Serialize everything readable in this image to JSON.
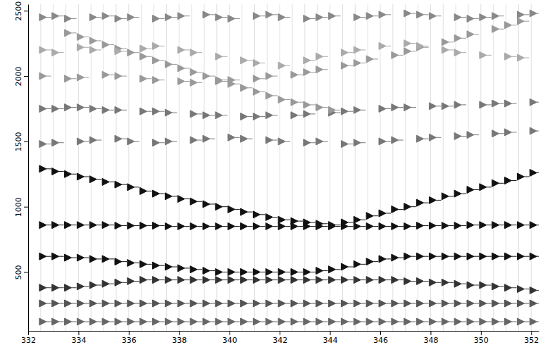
{
  "chart_data": {
    "type": "scatter",
    "marker": "flag",
    "grid": false,
    "xlim": [
      332,
      352.3
    ],
    "xticks": [
      332,
      334,
      336,
      338,
      340,
      342,
      344,
      346,
      348,
      350,
      352
    ],
    "ylim": [
      50,
      2550
    ],
    "yticks": [
      500,
      1000,
      1500,
      2000,
      2500
    ],
    "x": [
      332.5,
      333.0,
      333.5,
      334.0,
      334.5,
      335.0,
      335.5,
      336.0,
      336.5,
      337.0,
      337.5,
      338.0,
      338.5,
      339.0,
      339.5,
      340.0,
      340.5,
      341.0,
      341.5,
      342.0,
      342.5,
      343.0,
      343.5,
      344.0,
      344.5,
      345.0,
      345.5,
      346.0,
      346.5,
      347.0,
      347.5,
      348.0,
      348.5,
      349.0,
      349.5,
      350.0,
      350.5,
      351.0,
      351.5,
      352.0
    ],
    "series": [
      {
        "color": "#111111",
        "values": [
          1290,
          1270,
          1250,
          1230,
          1210,
          1190,
          1170,
          1150,
          1120,
          1100,
          1080,
          1060,
          1040,
          1020,
          1000,
          980,
          960,
          940,
          920,
          900,
          890,
          880,
          870,
          860,
          880,
          900,
          930,
          950,
          980,
          1000,
          1030,
          1050,
          1080,
          1100,
          1130,
          1150,
          1180,
          1200,
          1230,
          1260
        ]
      },
      {
        "color": "#111111",
        "values": [
          860,
          860,
          860,
          860,
          860,
          860,
          855,
          855,
          855,
          855,
          850,
          850,
          850,
          850,
          850,
          850,
          850,
          850,
          850,
          850,
          850,
          850,
          850,
          850,
          850,
          850,
          850,
          850,
          850,
          850,
          855,
          855,
          855,
          855,
          860,
          860,
          860,
          860,
          860,
          860
        ]
      },
      {
        "color": "#111111",
        "values": [
          620,
          620,
          610,
          610,
          600,
          600,
          580,
          570,
          560,
          550,
          540,
          530,
          520,
          510,
          500,
          500,
          500,
          500,
          500,
          500,
          500,
          500,
          510,
          520,
          540,
          560,
          580,
          600,
          610,
          620,
          620,
          620,
          620,
          620,
          620,
          620,
          620,
          620,
          620,
          620
        ]
      },
      {
        "color": "#333333",
        "values": [
          380,
          380,
          380,
          390,
          400,
          410,
          420,
          430,
          440,
          440,
          440,
          440,
          440,
          440,
          440,
          440,
          440,
          440,
          440,
          440,
          440,
          440,
          440,
          440,
          440,
          440,
          440,
          440,
          440,
          430,
          430,
          420,
          420,
          410,
          400,
          400,
          390,
          380,
          370,
          360
        ]
      },
      {
        "color": "#555555",
        "values": [
          260,
          260,
          260,
          260,
          260,
          260,
          260,
          260,
          260,
          260,
          260,
          260,
          260,
          260,
          260,
          260,
          260,
          260,
          260,
          260,
          260,
          260,
          260,
          260,
          260,
          260,
          260,
          260,
          260,
          260,
          260,
          260,
          260,
          260,
          260,
          260,
          260,
          260,
          260,
          260
        ]
      },
      {
        "color": "#666666",
        "values": [
          120,
          120,
          120,
          120,
          120,
          120,
          120,
          120,
          120,
          120,
          120,
          120,
          120,
          120,
          120,
          120,
          120,
          120,
          120,
          120,
          120,
          120,
          120,
          120,
          120,
          120,
          120,
          120,
          120,
          120,
          120,
          120,
          120,
          120,
          120,
          120,
          120,
          120,
          120,
          120
        ]
      },
      {
        "color": "#777777",
        "values": [
          1480,
          1490,
          null,
          1500,
          1510,
          null,
          1520,
          1500,
          null,
          1490,
          1500,
          null,
          1510,
          1520,
          null,
          1530,
          1520,
          null,
          1510,
          1500,
          null,
          1490,
          1500,
          null,
          1480,
          1490,
          null,
          1500,
          1510,
          null,
          1520,
          1530,
          null,
          1540,
          1550,
          null,
          1560,
          1570,
          null,
          1580
        ]
      },
      {
        "color": "#777777",
        "values": [
          1750,
          1750,
          1760,
          1760,
          1750,
          1740,
          1740,
          null,
          1730,
          1730,
          1720,
          null,
          1710,
          1700,
          1700,
          null,
          1690,
          1690,
          1700,
          null,
          1700,
          1710,
          null,
          1720,
          1730,
          1740,
          null,
          1750,
          1760,
          1760,
          null,
          1770,
          1770,
          1780,
          null,
          1780,
          1790,
          1790,
          null,
          1800
        ]
      },
      {
        "color": "#999999",
        "values": [
          null,
          null,
          2330,
          2300,
          2270,
          2240,
          2210,
          2180,
          2150,
          2120,
          2090,
          2060,
          2030,
          2000,
          1970,
          1940,
          1910,
          1880,
          1850,
          1820,
          1800,
          1780,
          1760,
          1740,
          null,
          null,
          null,
          null,
          null,
          null,
          null,
          null,
          null,
          null,
          null,
          null,
          null,
          null,
          null,
          null
        ]
      },
      {
        "color": "#999999",
        "values": [
          2000,
          null,
          1980,
          1990,
          null,
          2010,
          2000,
          null,
          1980,
          1970,
          null,
          1960,
          1950,
          null,
          1960,
          1970,
          null,
          1980,
          2000,
          null,
          2010,
          2030,
          2050,
          null,
          2080,
          2100,
          2130,
          null,
          2160,
          2190,
          2220,
          null,
          2260,
          2290,
          2320,
          null,
          2360,
          2390,
          2420,
          null
        ]
      },
      {
        "color": "#888888",
        "values": [
          2450,
          2460,
          2440,
          null,
          2450,
          2460,
          2440,
          2450,
          null,
          2440,
          2450,
          2460,
          null,
          2470,
          2450,
          2440,
          null,
          2460,
          2470,
          2450,
          null,
          2440,
          2450,
          2460,
          null,
          2450,
          2460,
          2470,
          null,
          2480,
          2470,
          2460,
          null,
          2450,
          2440,
          2450,
          2460,
          null,
          2470,
          2480
        ]
      },
      {
        "color": "#aaaaaa",
        "values": [
          2200,
          2180,
          null,
          2220,
          2200,
          null,
          2190,
          null,
          2210,
          2230,
          null,
          2200,
          2180,
          null,
          2150,
          null,
          2120,
          2100,
          null,
          2080,
          null,
          2120,
          2150,
          null,
          2180,
          2200,
          null,
          2230,
          null,
          2250,
          2230,
          null,
          2200,
          2180,
          null,
          2160,
          null,
          2150,
          2140,
          null
        ]
      }
    ]
  }
}
